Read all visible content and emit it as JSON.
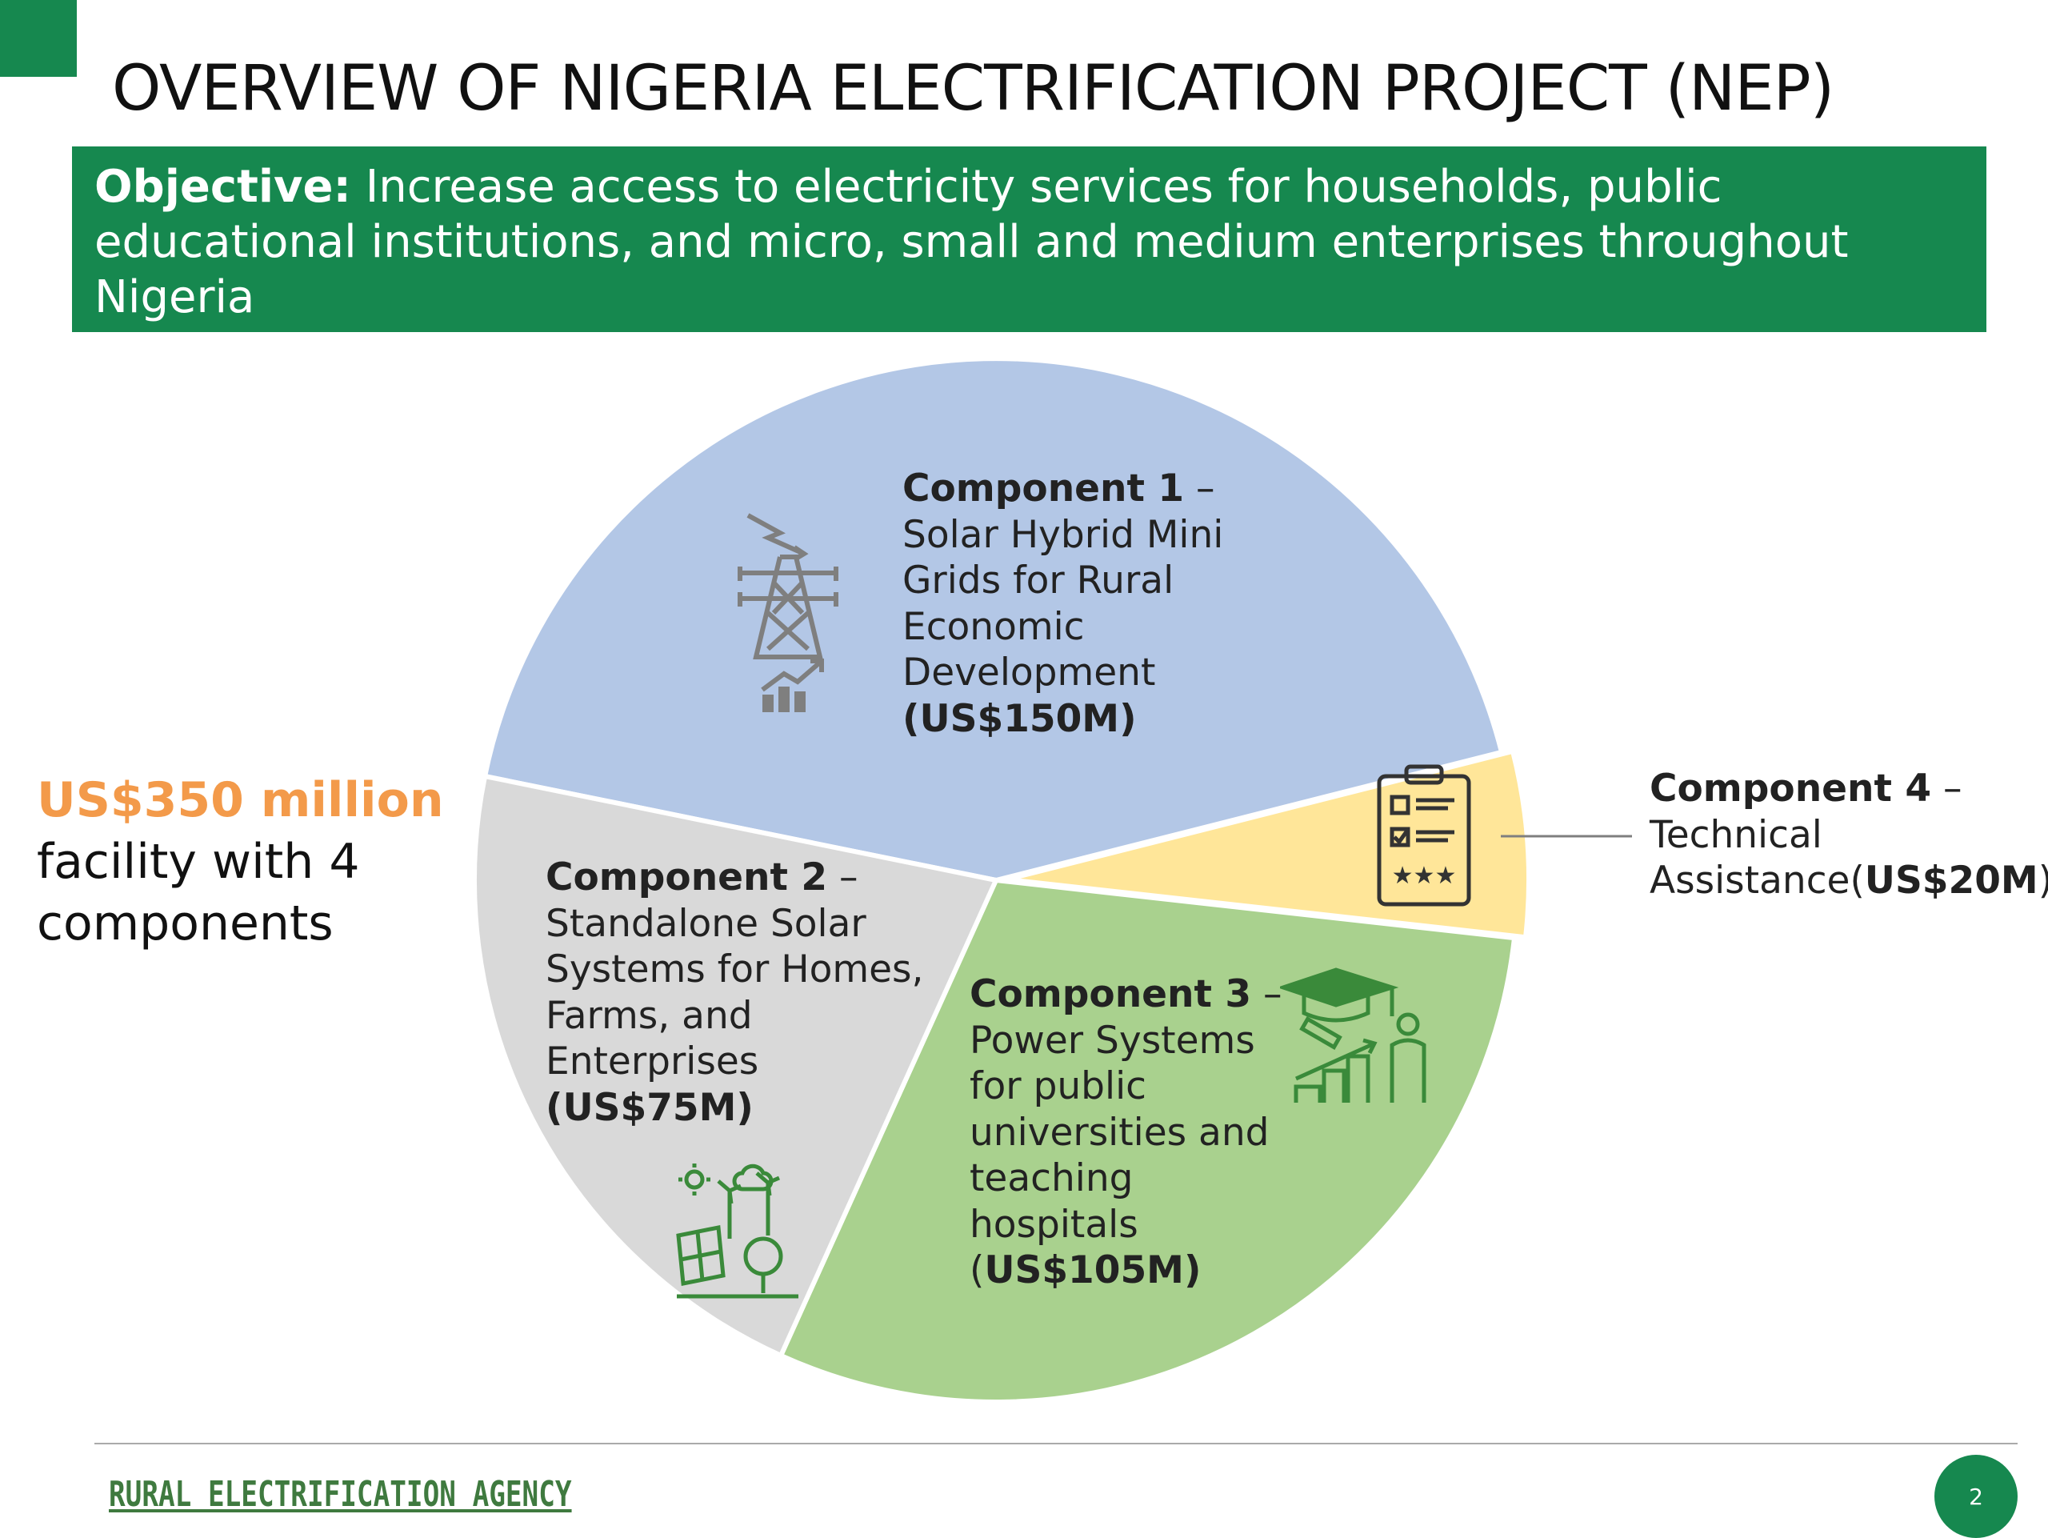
{
  "title": "OVERVIEW OF NIGERIA ELECTRIFICATION PROJECT (NEP)",
  "objective": {
    "label": "Objective:",
    "text": "Increase access to electricity services for households, public educational institutions, and micro, small and medium enterprises throughout Nigeria"
  },
  "facility": {
    "amount": "US$350 million",
    "line2": "facility with 4",
    "line3": "components"
  },
  "colors": {
    "brand_green": "#16884f",
    "accent_orange": "#f39a4a",
    "component1": "#b3c7e6",
    "component2": "#d9d9d9",
    "component3": "#a9d18e",
    "component4": "#ffe699",
    "icon_green": "#3a8a3a",
    "icon_gray": "#7f7f7f"
  },
  "chart_data": {
    "type": "pie",
    "unit": "US$M",
    "slices": [
      {
        "name": "Component 1",
        "value": 150,
        "color": "#b3c7e6",
        "lines": [
          "Solar Hybrid Mini",
          "Grids for Rural",
          "Economic",
          "Development"
        ],
        "amount": "(US$150M)",
        "icon": "transmission-tower-icon"
      },
      {
        "name": "Component 4",
        "value": 20,
        "color": "#ffe699",
        "lines": [
          "Technical"
        ],
        "last_line_prefix": "Assistance(",
        "amount_core": "US$20M",
        "last_line_suffix": ")",
        "icon": "clipboard-checklist-icon"
      },
      {
        "name": "Component 3",
        "value": 105,
        "color": "#a9d18e",
        "lines": [
          "Power Systems",
          "for public",
          "universities and",
          "teaching",
          "hospitals"
        ],
        "amount_prefix": "(",
        "amount_core": "US$105M)",
        "icon": "graduation-cap-icon"
      },
      {
        "name": "Component 2",
        "value": 75,
        "color": "#d9d9d9",
        "lines": [
          "Standalone Solar",
          "Systems for Homes,",
          "Farms, and",
          "Enterprises"
        ],
        "amount": "(US$75M)",
        "icon": "renewable-energy-icon"
      }
    ]
  },
  "footer": {
    "brand": "RURAL ELECTRIFICATION AGENCY",
    "page_number": "2"
  }
}
